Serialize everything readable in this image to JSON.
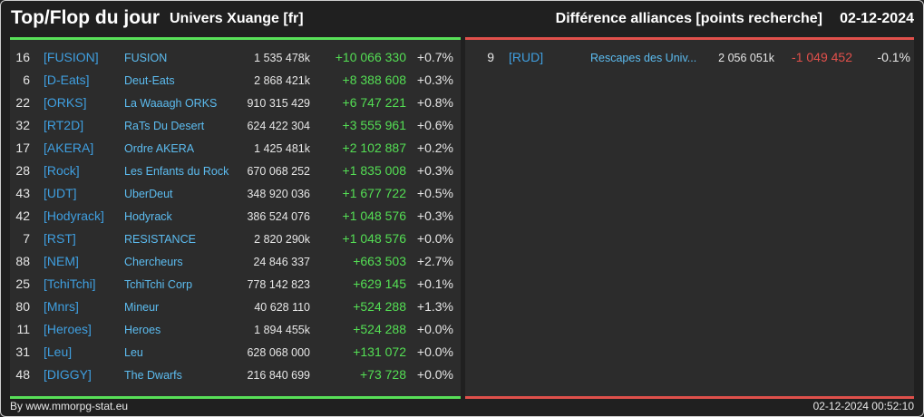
{
  "header": {
    "title": "Top/Flop du jour",
    "universe": "Univers Xuange [fr]",
    "category": "Différence alliances [points recherche]",
    "date": "02-12-2024"
  },
  "colors": {
    "gain": "#54df54",
    "loss": "#e2504b",
    "tag": "#3f9fe0",
    "name": "#5cbcf0"
  },
  "top": [
    {
      "rank": "16",
      "tag": "[FUSION]",
      "name": "FUSION",
      "points": "1 535 478k",
      "diff": "+10 066 330",
      "pct": "+0.7%"
    },
    {
      "rank": "6",
      "tag": "[D-Eats]",
      "name": "Deut-Eats",
      "points": "2 868 421k",
      "diff": "+8 388 608",
      "pct": "+0.3%"
    },
    {
      "rank": "22",
      "tag": "[ORKS]",
      "name": "La Waaagh ORKS",
      "points": "910 315 429",
      "diff": "+6 747 221",
      "pct": "+0.8%"
    },
    {
      "rank": "32",
      "tag": "[RT2D]",
      "name": "RaTs Du Desert",
      "points": "624 422 304",
      "diff": "+3 555 961",
      "pct": "+0.6%"
    },
    {
      "rank": "17",
      "tag": "[AKERA]",
      "name": "Ordre AKERA",
      "points": "1 425 481k",
      "diff": "+2 102 887",
      "pct": "+0.2%"
    },
    {
      "rank": "28",
      "tag": "[Rock]",
      "name": "Les Enfants du Rock",
      "points": "670 068 252",
      "diff": "+1 835 008",
      "pct": "+0.3%"
    },
    {
      "rank": "43",
      "tag": "[UDT]",
      "name": "UberDeut",
      "points": "348 920 036",
      "diff": "+1 677 722",
      "pct": "+0.5%"
    },
    {
      "rank": "42",
      "tag": "[Hodyrack]",
      "name": "Hodyrack",
      "points": "386 524 076",
      "diff": "+1 048 576",
      "pct": "+0.3%"
    },
    {
      "rank": "7",
      "tag": "[RST]",
      "name": "RESISTANCE",
      "points": "2 820 290k",
      "diff": "+1 048 576",
      "pct": "+0.0%"
    },
    {
      "rank": "88",
      "tag": "[NEM]",
      "name": "Chercheurs",
      "points": "24 846 337",
      "diff": "+663 503",
      "pct": "+2.7%"
    },
    {
      "rank": "25",
      "tag": "[TchiTchi]",
      "name": "TchiTchi Corp",
      "points": "778 142 823",
      "diff": "+629 145",
      "pct": "+0.1%"
    },
    {
      "rank": "80",
      "tag": "[Mnrs]",
      "name": "Mineur",
      "points": "40 628 110",
      "diff": "+524 288",
      "pct": "+1.3%"
    },
    {
      "rank": "11",
      "tag": "[Heroes]",
      "name": "Heroes",
      "points": "1 894 455k",
      "diff": "+524 288",
      "pct": "+0.0%"
    },
    {
      "rank": "31",
      "tag": "[Leu]",
      "name": "Leu",
      "points": "628 068 000",
      "diff": "+131 072",
      "pct": "+0.0%"
    },
    {
      "rank": "48",
      "tag": "[DIGGY]",
      "name": "The Dwarfs",
      "points": "216 840 699",
      "diff": "+73 728",
      "pct": "+0.0%"
    }
  ],
  "flop": [
    {
      "rank": "9",
      "tag": "[RUD]",
      "name": "Rescapes des Univ...",
      "points": "2 056 051k",
      "diff": "-1 049 452",
      "pct": "-0.1%"
    }
  ],
  "footer": {
    "credit": "By www.mmorpg-stat.eu",
    "timestamp": "02-12-2024 00:52:10"
  }
}
